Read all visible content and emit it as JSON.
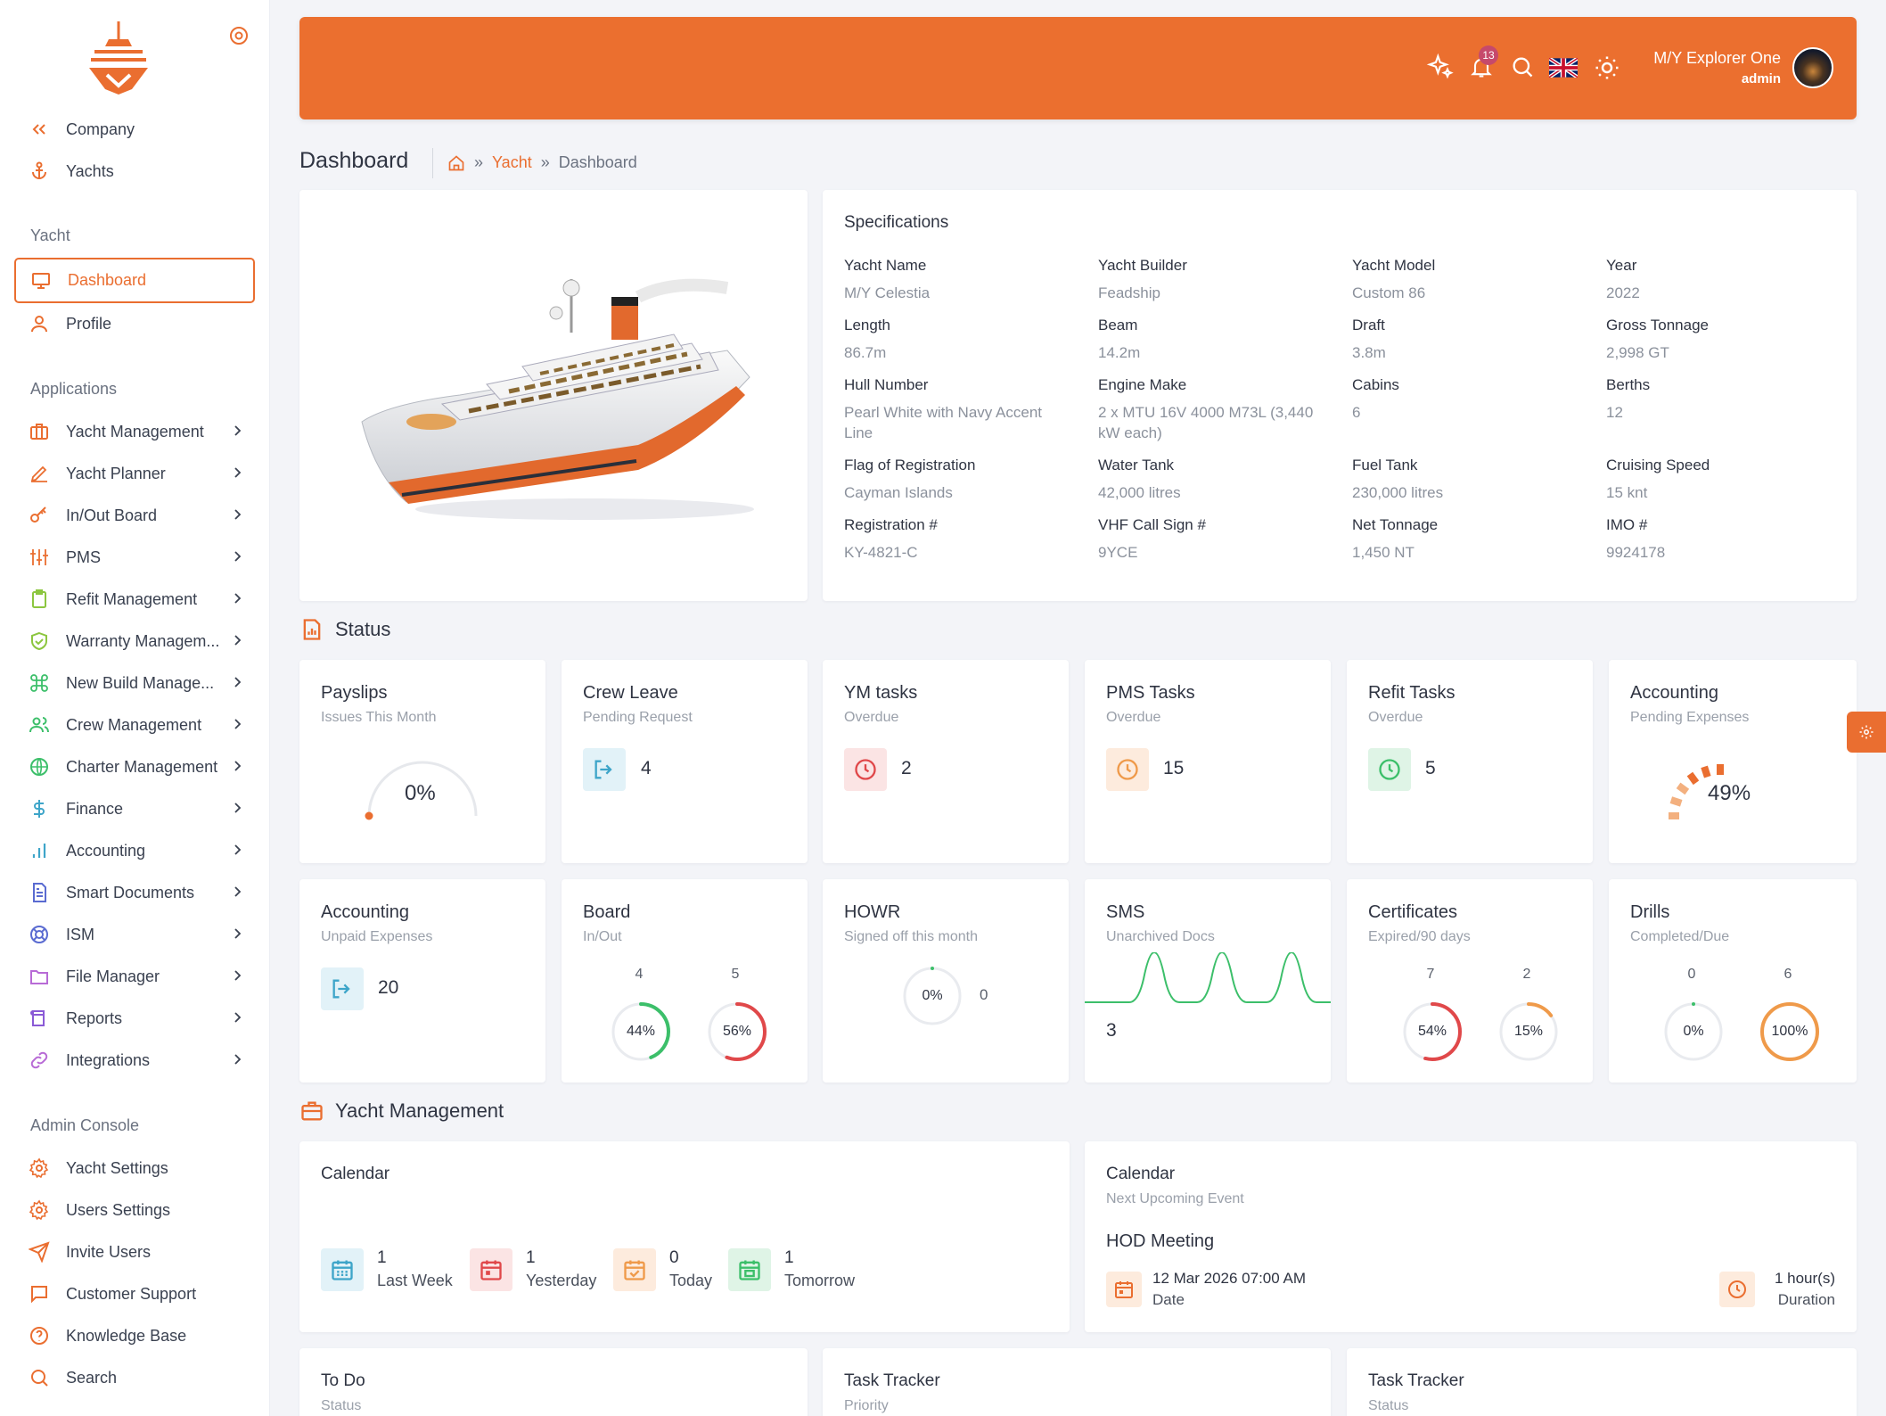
{
  "sidebar": {
    "top_items": [
      {
        "label": "Company",
        "icon": "double-chevron-left-icon"
      },
      {
        "label": "Yachts",
        "icon": "anchor-icon"
      }
    ],
    "sections": {
      "yacht": "Yacht",
      "applications": "Applications",
      "admin": "Admin Console"
    },
    "yacht_items": [
      {
        "label": "Dashboard",
        "icon": "monitor-icon",
        "active": true
      },
      {
        "label": "Profile",
        "icon": "user-icon"
      }
    ],
    "app_items": [
      {
        "label": "Yacht Management",
        "icon": "briefcase-icon"
      },
      {
        "label": "Yacht Planner",
        "icon": "pen-icon"
      },
      {
        "label": "In/Out Board",
        "icon": "key-icon"
      },
      {
        "label": "PMS",
        "icon": "sliders-icon"
      },
      {
        "label": "Refit Management",
        "icon": "clipboard-icon"
      },
      {
        "label": "Warranty Managem...",
        "icon": "shield-check-icon"
      },
      {
        "label": "New Build Manage...",
        "icon": "command-icon"
      },
      {
        "label": "Crew Management",
        "icon": "users-icon"
      },
      {
        "label": "Charter Management",
        "icon": "globe-icon"
      },
      {
        "label": "Finance",
        "icon": "dollar-icon"
      },
      {
        "label": "Accounting",
        "icon": "bar-chart-icon"
      },
      {
        "label": "Smart Documents",
        "icon": "file-text-icon"
      },
      {
        "label": "ISM",
        "icon": "life-buoy-icon"
      },
      {
        "label": "File Manager",
        "icon": "folder-icon"
      },
      {
        "label": "Reports",
        "icon": "book-icon"
      },
      {
        "label": "Integrations",
        "icon": "link-icon"
      }
    ],
    "admin_items": [
      {
        "label": "Yacht Settings",
        "icon": "gear-icon"
      },
      {
        "label": "Users Settings",
        "icon": "gear-icon"
      },
      {
        "label": "Invite Users",
        "icon": "send-icon"
      },
      {
        "label": "Customer Support",
        "icon": "message-icon"
      },
      {
        "label": "Knowledge Base",
        "icon": "help-circle-icon"
      },
      {
        "label": "Search",
        "icon": "search-icon"
      }
    ]
  },
  "header": {
    "notification_count": "13",
    "yacht_name": "M/Y Explorer One",
    "role": "admin"
  },
  "page": {
    "title": "Dashboard",
    "breadcrumb": [
      "Yacht",
      "Dashboard"
    ]
  },
  "specs": {
    "title": "Specifications",
    "rows": [
      [
        {
          "label": "Yacht Name",
          "value": "M/Y Celestia"
        },
        {
          "label": "Yacht Builder",
          "value": "Feadship"
        },
        {
          "label": "Yacht Model",
          "value": "Custom 86"
        },
        {
          "label": "Year",
          "value": "2022"
        }
      ],
      [
        {
          "label": "Length",
          "value": "86.7m"
        },
        {
          "label": "Beam",
          "value": "14.2m"
        },
        {
          "label": "Draft",
          "value": "3.8m"
        },
        {
          "label": "Gross Tonnage",
          "value": "2,998 GT"
        }
      ],
      [
        {
          "label": "Hull Number",
          "value": "Pearl White with Navy Accent Line"
        },
        {
          "label": "Engine Make",
          "value": "2 x MTU 16V 4000 M73L (3,440 kW each)"
        },
        {
          "label": "Cabins",
          "value": "6"
        },
        {
          "label": "Berths",
          "value": "12"
        }
      ],
      [
        {
          "label": "Flag of Registration",
          "value": "Cayman Islands"
        },
        {
          "label": "Water Tank",
          "value": "42,000 litres"
        },
        {
          "label": "Fuel Tank",
          "value": "230,000 litres"
        },
        {
          "label": "Cruising Speed",
          "value": "15 knt"
        }
      ],
      [
        {
          "label": "Registration #",
          "value": "KY-4821-C"
        },
        {
          "label": "VHF Call Sign #",
          "value": "9YCE"
        },
        {
          "label": "Net Tonnage",
          "value": "1,450 NT"
        },
        {
          "label": "IMO #",
          "value": "9924178"
        }
      ]
    ]
  },
  "status": {
    "title": "Status",
    "payslips": {
      "title": "Payslips",
      "sub": "Issues This Month",
      "value": "0%",
      "fraction": 0
    },
    "crew_leave": {
      "title": "Crew Leave",
      "sub": "Pending Request",
      "value": "4"
    },
    "ym_tasks": {
      "title": "YM tasks",
      "sub": "Overdue",
      "value": "2"
    },
    "pms_tasks": {
      "title": "PMS Tasks",
      "sub": "Overdue",
      "value": "15"
    },
    "refit_tasks": {
      "title": "Refit Tasks",
      "sub": "Overdue",
      "value": "5"
    },
    "accounting_pending": {
      "title": "Accounting",
      "sub": "Pending Expenses",
      "value": "49%",
      "fraction": 0.49
    },
    "accounting_unpaid": {
      "title": "Accounting",
      "sub": "Unpaid Expenses",
      "value": "20"
    },
    "board": {
      "title": "Board",
      "sub": "In/Out",
      "in_count": "4",
      "out_count": "5",
      "in_pct": "44%",
      "out_pct": "56%",
      "in_frac": 0.44,
      "out_frac": 0.56
    },
    "howr": {
      "title": "HOWR",
      "sub": "Signed off this month",
      "pct": "0%",
      "count": "0",
      "frac": 0
    },
    "sms": {
      "title": "SMS",
      "sub": "Unarchived Docs",
      "value": "3"
    },
    "certificates": {
      "title": "Certificates",
      "sub": "Expired/90 days",
      "a_count": "7",
      "b_count": "2",
      "a_pct": "54%",
      "b_pct": "15%",
      "a_frac": 0.54,
      "b_frac": 0.15
    },
    "drills": {
      "title": "Drills",
      "sub": "Completed/Due",
      "a_count": "0",
      "b_count": "6",
      "a_pct": "0%",
      "b_pct": "100%",
      "a_frac": 0,
      "b_frac": 1
    }
  },
  "yacht_management": {
    "title": "Yacht Management",
    "calendar": {
      "title": "Calendar",
      "items": [
        {
          "count": "1",
          "label": "Last Week"
        },
        {
          "count": "1",
          "label": "Yesterday"
        },
        {
          "count": "0",
          "label": "Today"
        },
        {
          "count": "1",
          "label": "Tomorrow"
        }
      ]
    },
    "next_event": {
      "title": "Calendar",
      "sub": "Next Upcoming Event",
      "event": "HOD Meeting",
      "date": "12 Mar 2026 07:00 AM",
      "date_label": "Date",
      "duration": "1 hour(s)",
      "duration_label": "Duration"
    }
  },
  "bottom_cards": [
    {
      "title": "To Do",
      "sub": "Status"
    },
    {
      "title": "Task Tracker",
      "sub": "Priority"
    },
    {
      "title": "Task Tracker",
      "sub": "Status"
    }
  ],
  "colors": {
    "accent": "#ea6e30",
    "red": "#e0484a",
    "green": "#3cbf6a",
    "blue": "#3ea5c9"
  }
}
